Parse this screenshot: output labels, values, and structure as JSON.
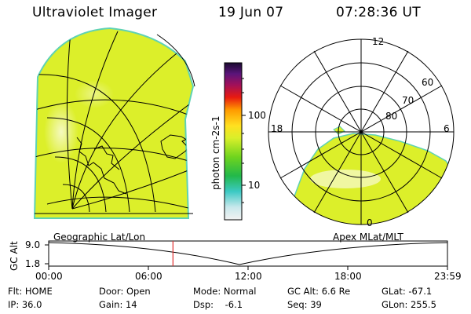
{
  "header": {
    "title": "Ultraviolet Imager",
    "date": "19 Jun 07",
    "time": "07:28:36 UT"
  },
  "colorbar": {
    "unit_label": "photon cm-2s-1",
    "ticks": [
      "100",
      "10"
    ]
  },
  "polar": {
    "hour_labels": {
      "top": "12",
      "left": "18",
      "right": "6",
      "bottom": "0"
    },
    "lat_labels": [
      "60",
      "70",
      "80"
    ]
  },
  "captions": {
    "left": "Geographic Lat/Lon",
    "right": "Apex MLat/MLT"
  },
  "orbit": {
    "ylabel": "GC Alt",
    "ytick_top": "9.0",
    "ytick_bottom": "1.8",
    "xticks": [
      "00:00",
      "06:00",
      "12:00",
      "18:00",
      "23:59"
    ],
    "current_time_fraction": 0.3117
  },
  "info": {
    "flt": "Flt: HOME",
    "ip": "IP: 36.0",
    "door": "Door: Open",
    "gain": "Gain: 14",
    "mode": "Mode: Normal",
    "dsp": "Dsp:    -6.1",
    "gcalt": "GC Alt: 6.6 Re",
    "seq": "Seq: 39",
    "glat": "GLat: -67.1",
    "glon": "GLon: 255.5"
  },
  "colors": {
    "image_fill": "#dcef2a",
    "image_edge": "#5fd2b4",
    "marker": "#e03030"
  }
}
